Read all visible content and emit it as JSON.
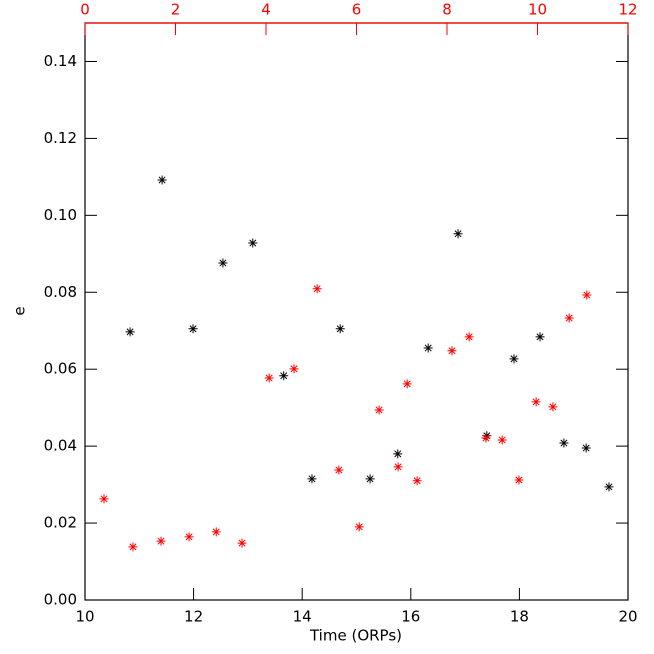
{
  "chart_data": {
    "type": "scatter",
    "xlabel": "Time (ORPs)",
    "ylabel": "e",
    "xlim": [
      10,
      20
    ],
    "xticks": [
      10,
      12,
      14,
      16,
      18,
      20
    ],
    "x2lim": [
      0,
      12
    ],
    "x2ticks": [
      0,
      2,
      4,
      6,
      8,
      10,
      12
    ],
    "x2color": "#ff0000",
    "ylim": [
      0,
      0.15
    ],
    "yticks": [
      {
        "value": 0,
        "label": "0.00"
      },
      {
        "value": 0.02,
        "label": "0.02"
      },
      {
        "value": 0.04,
        "label": "0.04"
      },
      {
        "value": 0.06,
        "label": "0.06"
      },
      {
        "value": 0.08,
        "label": "0.08"
      },
      {
        "value": 0.1,
        "label": "0.10"
      },
      {
        "value": 0.12,
        "label": "0.12"
      },
      {
        "value": 0.14,
        "label": "0.14"
      }
    ],
    "series": [
      {
        "color": "#000000",
        "x": [
          10.83,
          11.42,
          11.99,
          12.54,
          13.09,
          13.66,
          14.18,
          14.7,
          15.25,
          15.76,
          16.32,
          16.87,
          17.4,
          17.9,
          18.38,
          18.82,
          19.23,
          19.65
        ],
        "values": [
          0.0697,
          0.1092,
          0.0705,
          0.0876,
          0.0928,
          0.0583,
          0.0315,
          0.0705,
          0.0315,
          0.038,
          0.0655,
          0.0952,
          0.0427,
          0.0627,
          0.0684,
          0.0408,
          0.0395,
          0.0294
        ]
      },
      {
        "color": "#ff0000",
        "axis": "x2",
        "x": [
          0.42,
          1.06,
          1.68,
          2.3,
          2.9,
          3.47,
          4.07,
          4.62,
          5.13,
          5.61,
          6.06,
          6.5,
          6.92,
          7.12,
          7.34,
          8.11,
          8.49,
          8.86,
          9.22,
          9.59,
          9.97,
          10.34,
          10.7,
          11.09
        ],
        "values": [
          0.0263,
          0.0138,
          0.0153,
          0.0164,
          0.0177,
          0.0148,
          0.0577,
          0.0601,
          0.0809,
          0.0338,
          0.019,
          0.0494,
          0.0346,
          0.0562,
          0.031,
          0.0648,
          0.0684,
          0.0421,
          0.0416,
          0.0312,
          0.0515,
          0.0502,
          0.0733,
          0.0793
        ]
      }
    ]
  }
}
